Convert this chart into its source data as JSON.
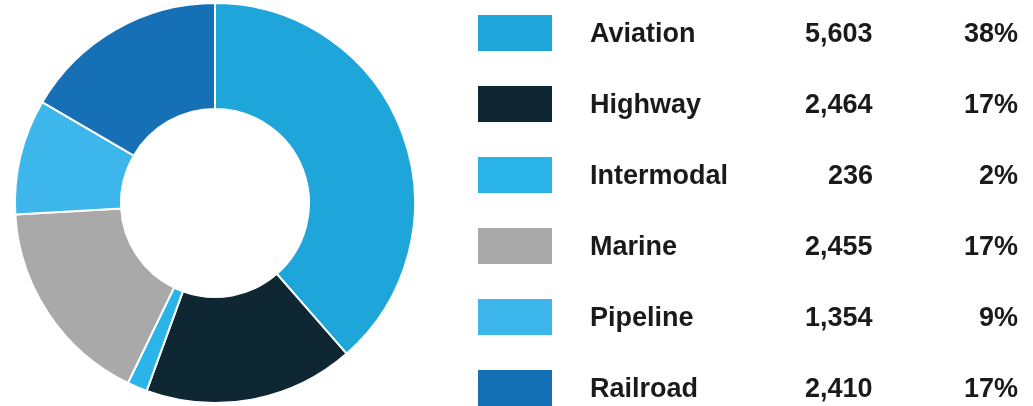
{
  "chart_data": {
    "type": "donut",
    "categories": [
      "Aviation",
      "Highway",
      "Intermodal",
      "Marine",
      "Pipeline",
      "Railroad"
    ],
    "values": [
      5603,
      2464,
      236,
      2455,
      1354,
      2410
    ],
    "value_labels": [
      "5,603",
      "2,464",
      "236",
      "2,455",
      "1,354",
      "2,410"
    ],
    "colors": [
      "#1ea6da",
      "#0f2633",
      "#2ab4e8",
      "#a9a9a9",
      "#3db6ec",
      "#1670b5"
    ],
    "annotations": [
      "38%",
      "17%",
      "2%",
      "17%",
      "9%",
      "17%"
    ],
    "legend": "right"
  }
}
